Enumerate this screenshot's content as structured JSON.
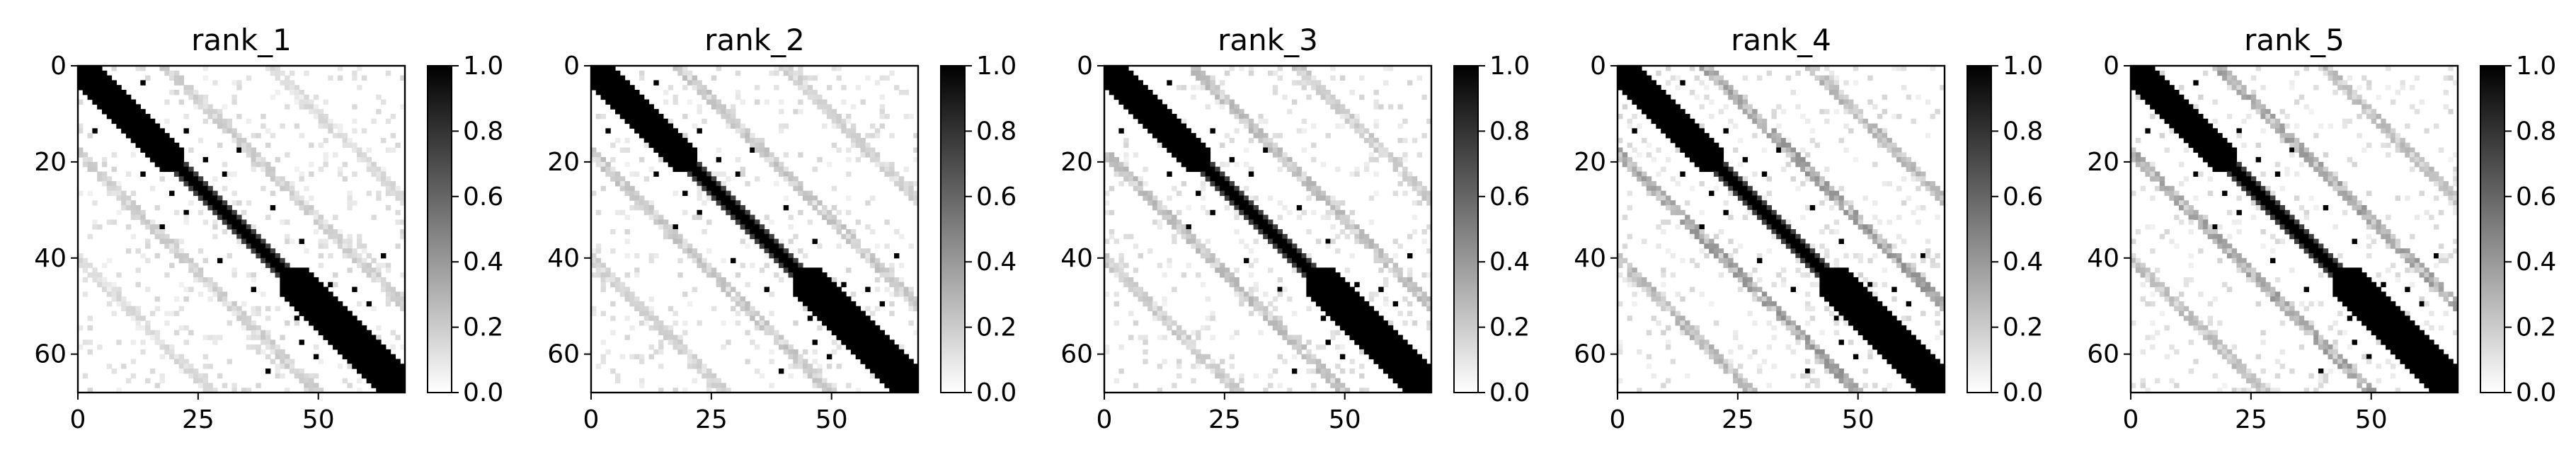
{
  "chart_data": [
    {
      "type": "heatmap",
      "title": "rank_1",
      "xlabel": "",
      "ylabel": "",
      "xlim": [
        0,
        68
      ],
      "ylim": [
        68,
        0
      ],
      "xticks": [
        "0",
        "25",
        "50"
      ],
      "yticks": [
        "0",
        "20",
        "40",
        "60"
      ],
      "colorbar": {
        "range": [
          0.0,
          1.0
        ],
        "ticks": [
          "0.0",
          "0.2",
          "0.4",
          "0.6",
          "0.8",
          "1.0"
        ],
        "colormap": "Greys"
      },
      "matrix_size": 68,
      "block_diagonal": [
        {
          "from": 0,
          "to": 22,
          "value": 1.0
        },
        {
          "from": 42,
          "to": 68,
          "value": 1.0
        }
      ],
      "diagonal_band": {
        "value": 1.0
      },
      "faint_offdiagonal": [
        {
          "center": 38,
          "offset": 18,
          "value": 0.15
        },
        {
          "center": 50,
          "offset": 40,
          "value": 0.12
        }
      ],
      "grid": false
    },
    {
      "type": "heatmap",
      "title": "rank_2",
      "xlabel": "",
      "ylabel": "",
      "xlim": [
        0,
        68
      ],
      "ylim": [
        68,
        0
      ],
      "xticks": [
        "0",
        "25",
        "50"
      ],
      "yticks": [
        "0",
        "20",
        "40",
        "60"
      ],
      "colorbar": {
        "range": [
          0.0,
          1.0
        ],
        "ticks": [
          "0.0",
          "0.2",
          "0.4",
          "0.6",
          "0.8",
          "1.0"
        ],
        "colormap": "Greys"
      },
      "matrix_size": 68,
      "block_diagonal": [
        {
          "from": 0,
          "to": 22,
          "value": 1.0
        },
        {
          "from": 42,
          "to": 68,
          "value": 1.0
        }
      ],
      "diagonal_band": {
        "value": 1.0
      },
      "faint_offdiagonal": [
        {
          "center": 38,
          "offset": 18,
          "value": 0.18
        },
        {
          "center": 50,
          "offset": 40,
          "value": 0.14
        }
      ],
      "grid": false
    },
    {
      "type": "heatmap",
      "title": "rank_3",
      "xlabel": "",
      "ylabel": "",
      "xlim": [
        0,
        68
      ],
      "ylim": [
        68,
        0
      ],
      "xticks": [
        "0",
        "25",
        "50"
      ],
      "yticks": [
        "0",
        "20",
        "40",
        "60"
      ],
      "colorbar": {
        "range": [
          0.0,
          1.0
        ],
        "ticks": [
          "0.0",
          "0.2",
          "0.4",
          "0.6",
          "0.8",
          "1.0"
        ],
        "colormap": "Greys"
      },
      "matrix_size": 68,
      "block_diagonal": [
        {
          "from": 0,
          "to": 22,
          "value": 1.0
        },
        {
          "from": 42,
          "to": 68,
          "value": 1.0
        }
      ],
      "diagonal_band": {
        "value": 1.0
      },
      "faint_offdiagonal": [
        {
          "center": 38,
          "offset": 18,
          "value": 0.2
        },
        {
          "center": 50,
          "offset": 40,
          "value": 0.16
        }
      ],
      "grid": false
    },
    {
      "type": "heatmap",
      "title": "rank_4",
      "xlabel": "",
      "ylabel": "",
      "xlim": [
        0,
        68
      ],
      "ylim": [
        68,
        0
      ],
      "xticks": [
        "0",
        "25",
        "50"
      ],
      "yticks": [
        "0",
        "20",
        "40",
        "60"
      ],
      "colorbar": {
        "range": [
          0.0,
          1.0
        ],
        "ticks": [
          "0.0",
          "0.2",
          "0.4",
          "0.6",
          "0.8",
          "1.0"
        ],
        "colormap": "Greys"
      },
      "matrix_size": 68,
      "block_diagonal": [
        {
          "from": 0,
          "to": 22,
          "value": 1.0
        },
        {
          "from": 42,
          "to": 68,
          "value": 1.0
        }
      ],
      "diagonal_band": {
        "value": 1.0
      },
      "faint_offdiagonal": [
        {
          "center": 38,
          "offset": 18,
          "value": 0.3
        },
        {
          "center": 50,
          "offset": 40,
          "value": 0.22
        }
      ],
      "grid": false
    },
    {
      "type": "heatmap",
      "title": "rank_5",
      "xlabel": "",
      "ylabel": "",
      "xlim": [
        0,
        68
      ],
      "ylim": [
        68,
        0
      ],
      "xticks": [
        "0",
        "25",
        "50"
      ],
      "yticks": [
        "0",
        "20",
        "40",
        "60"
      ],
      "colorbar": {
        "range": [
          0.0,
          1.0
        ],
        "ticks": [
          "0.0",
          "0.2",
          "0.4",
          "0.6",
          "0.8",
          "1.0"
        ],
        "colormap": "Greys"
      },
      "matrix_size": 68,
      "block_diagonal": [
        {
          "from": 0,
          "to": 22,
          "value": 1.0
        },
        {
          "from": 42,
          "to": 68,
          "value": 1.0
        }
      ],
      "diagonal_band": {
        "value": 1.0
      },
      "faint_offdiagonal": [
        {
          "center": 38,
          "offset": 18,
          "value": 0.28
        },
        {
          "center": 50,
          "offset": 40,
          "value": 0.2
        }
      ],
      "grid": false
    }
  ]
}
